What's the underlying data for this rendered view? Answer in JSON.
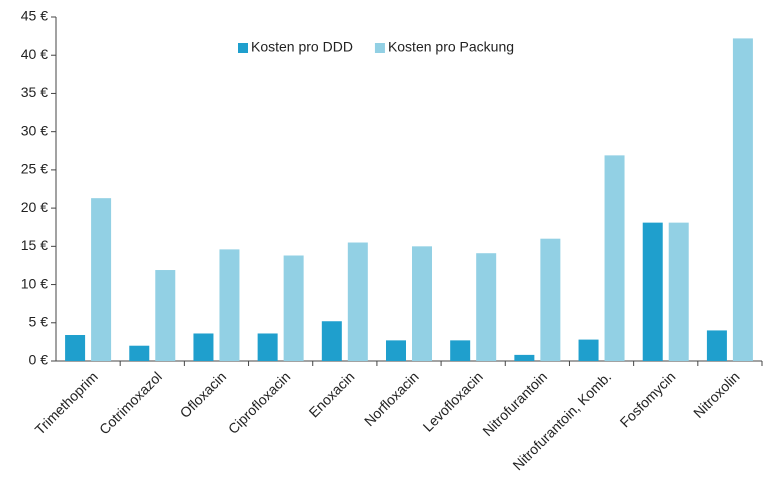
{
  "chart_data": {
    "type": "bar",
    "categories": [
      "Trimethoprim",
      "Cotrimoxazol",
      "Ofloxacin",
      "Ciprofloxacin",
      "Enoxacin",
      "Norfloxacin",
      "Levofloxacin",
      "Nitrofurantoin",
      "Nitrofurantoin, Komb.",
      "Fosfomycin",
      "Nitroxolin"
    ],
    "series": [
      {
        "name": "Kosten pro DDD",
        "color": "#1f9fcd",
        "values": [
          3.4,
          2.0,
          3.6,
          3.6,
          5.2,
          2.7,
          2.7,
          0.8,
          2.8,
          18.1,
          4.0
        ]
      },
      {
        "name": "Kosten pro Packung",
        "color": "#92d0e4",
        "values": [
          21.3,
          11.9,
          14.6,
          13.8,
          15.5,
          15.0,
          14.1,
          16.0,
          26.9,
          18.1,
          42.2
        ]
      }
    ],
    "ylim": [
      0,
      45
    ],
    "yticks": [
      {
        "value": 0,
        "label": "0 €"
      },
      {
        "value": 5,
        "label": "5 €"
      },
      {
        "value": 10,
        "label": "10 €"
      },
      {
        "value": 15,
        "label": "15 €"
      },
      {
        "value": 20,
        "label": "20 €"
      },
      {
        "value": 25,
        "label": "25 €"
      },
      {
        "value": 30,
        "label": "30 €"
      },
      {
        "value": 35,
        "label": "35 €"
      },
      {
        "value": 40,
        "label": "40 €"
      },
      {
        "value": 45,
        "label": "45 €"
      }
    ],
    "legend": "top"
  }
}
